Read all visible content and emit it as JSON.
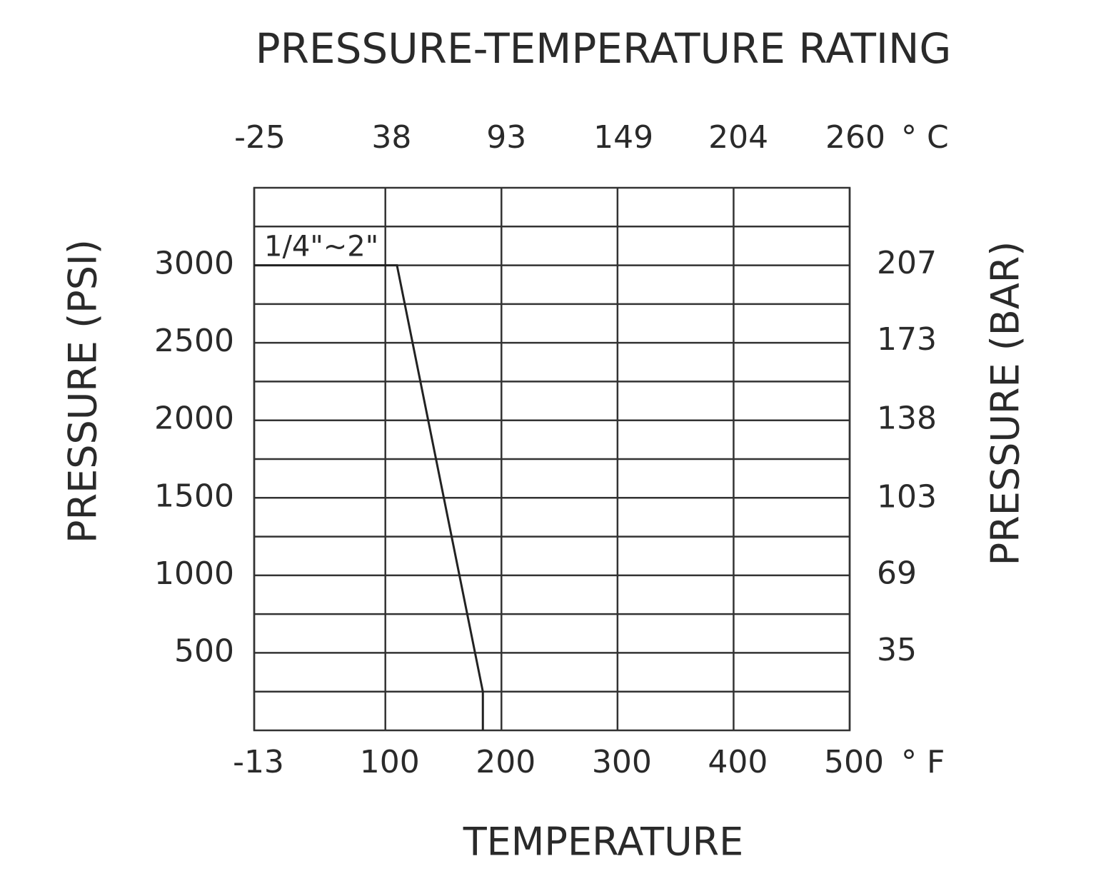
{
  "chart_data": {
    "type": "line",
    "title": "PRESSURE-TEMPERATURE RATING",
    "x_label": "TEMPERATURE",
    "y_label": "PRESSURE (PSI)",
    "y2_label": "PRESSURE (BAR)",
    "x_unit": "° F",
    "x2_unit": "° C",
    "xlim": [
      -13,
      500
    ],
    "xticks": [
      -13,
      100,
      200,
      300,
      400,
      500
    ],
    "x2lim": [
      -25,
      260
    ],
    "x2ticks": [
      -25,
      38,
      93,
      149,
      204,
      260
    ],
    "ylim": [
      0,
      3500
    ],
    "yticks": [
      500,
      1000,
      1500,
      2000,
      2500,
      3000
    ],
    "y_minor_grid": [
      250,
      750,
      1250,
      1750,
      2250,
      2750,
      3250
    ],
    "y2lim": [
      0,
      241.3
    ],
    "y2ticks": [
      35,
      69,
      103,
      138,
      173,
      207
    ],
    "grid": true,
    "series": [
      {
        "name": "1/4\"~2\"",
        "color": "#222222",
        "x": [
          -13,
          110,
          184,
          184
        ],
        "values": [
          3000,
          3000,
          250,
          0
        ]
      }
    ]
  }
}
